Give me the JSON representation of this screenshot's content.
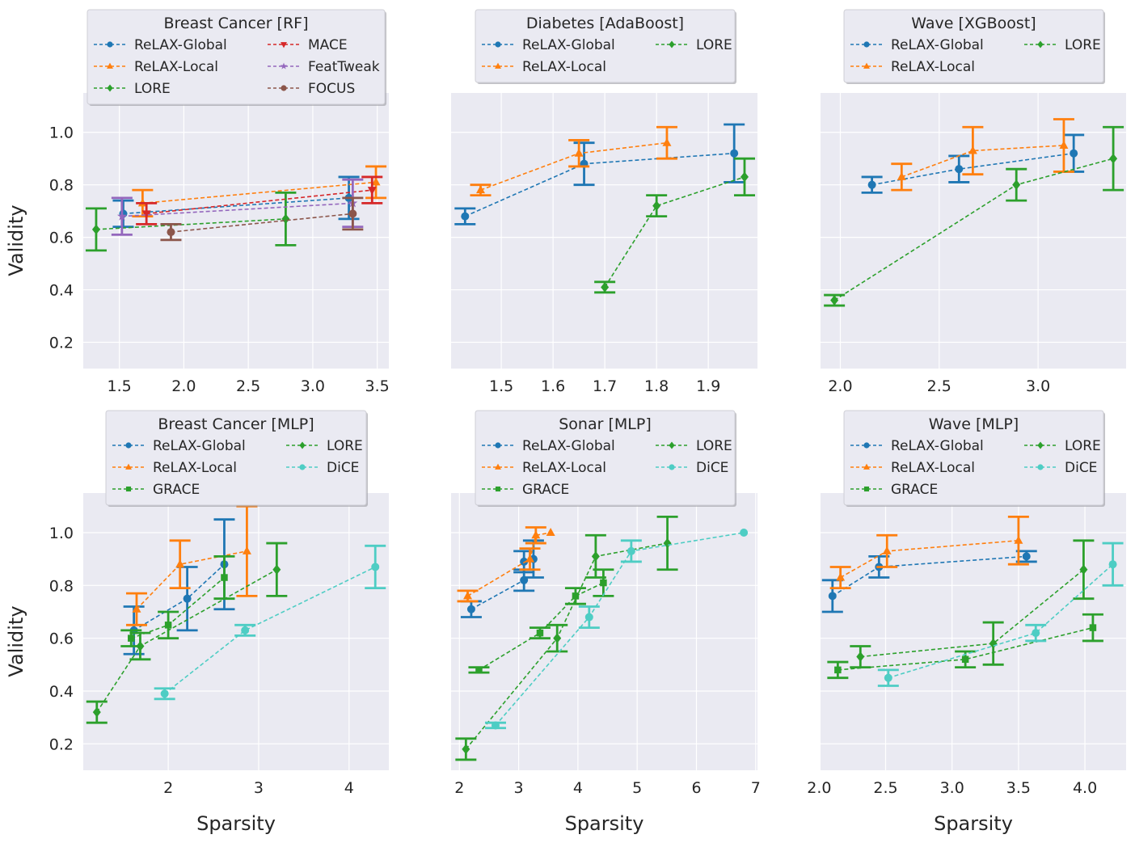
{
  "colors": {
    "background": "#eaeaf2",
    "grid": "#ffffff",
    "ReLAX-Global": "#1f77b4",
    "ReLAX-Local": "#ff7f0e",
    "LORE": "#2ca02c",
    "MACE": "#d62728",
    "FeatTweak": "#9467bd",
    "FOCUS": "#8c564b",
    "GRACE": "#2ca02c",
    "DiCE": "#4ecdc4"
  },
  "markers": {
    "ReLAX-Global": "circle",
    "ReLAX-Local": "triangle-up",
    "LORE": "diamond",
    "MACE": "triangle-down",
    "FeatTweak": "star",
    "FOCUS": "circle",
    "GRACE": "square",
    "DiCE": "circle"
  },
  "chart_data": [
    {
      "type": "line",
      "title": "Breast Cancer [RF]",
      "xlabel": "",
      "ylabel": "Validity",
      "xlim": [
        1.22,
        3.59
      ],
      "ylim": [
        0.1,
        1.15
      ],
      "xticks": [
        "1.5",
        "2.0",
        "2.5",
        "3.0",
        "3.5"
      ],
      "yticks": [
        "0.2",
        "0.4",
        "0.6",
        "0.8",
        "1.0"
      ],
      "grid": true,
      "legend": "top",
      "legend_order": [
        "ReLAX-Global",
        "MACE",
        "ReLAX-Local",
        "FeatTweak",
        "LORE",
        "FOCUS"
      ],
      "series": [
        {
          "name": "ReLAX-Global",
          "x": [
            1.53,
            3.28
          ],
          "y": [
            0.69,
            0.75
          ],
          "err": [
            0.05,
            0.08
          ]
        },
        {
          "name": "ReLAX-Local",
          "x": [
            1.68,
            3.49
          ],
          "y": [
            0.73,
            0.81
          ],
          "err": [
            0.05,
            0.06
          ]
        },
        {
          "name": "LORE",
          "x": [
            1.32,
            2.79
          ],
          "y": [
            0.63,
            0.67
          ],
          "err": [
            0.08,
            0.1
          ]
        },
        {
          "name": "MACE",
          "x": [
            1.71,
            3.46
          ],
          "y": [
            0.69,
            0.78
          ],
          "err": [
            0.04,
            0.05
          ]
        },
        {
          "name": "FeatTweak",
          "x": [
            1.52,
            3.31
          ],
          "y": [
            0.68,
            0.73
          ],
          "err": [
            0.07,
            0.09
          ]
        },
        {
          "name": "FOCUS",
          "x": [
            1.9,
            3.31
          ],
          "y": [
            0.62,
            0.69
          ],
          "err": [
            0.03,
            0.06
          ]
        }
      ]
    },
    {
      "type": "line",
      "title": "Diabetes [AdaBoost]",
      "xlabel": "",
      "ylabel": "",
      "xlim": [
        1.403,
        1.995
      ],
      "ylim": [
        0.1,
        1.15
      ],
      "xticks": [
        "1.5",
        "1.6",
        "1.7",
        "1.8",
        "1.9"
      ],
      "yticks": [],
      "grid": true,
      "legend": "top",
      "legend_order": [
        "ReLAX-Global",
        "LORE",
        "ReLAX-Local"
      ],
      "series": [
        {
          "name": "ReLAX-Global",
          "x": [
            1.43,
            1.66,
            1.95
          ],
          "y": [
            0.68,
            0.88,
            0.92
          ],
          "err": [
            0.03,
            0.08,
            0.11
          ]
        },
        {
          "name": "ReLAX-Local",
          "x": [
            1.46,
            1.65,
            1.82
          ],
          "y": [
            0.78,
            0.92,
            0.96
          ],
          "err": [
            0.02,
            0.05,
            0.06
          ]
        },
        {
          "name": "LORE",
          "x": [
            1.7,
            1.8,
            1.97
          ],
          "y": [
            0.41,
            0.72,
            0.83
          ],
          "err": [
            0.02,
            0.04,
            0.07
          ]
        }
      ]
    },
    {
      "type": "line",
      "title": "Wave [XGBoost]",
      "xlabel": "",
      "ylabel": "",
      "xlim": [
        1.9,
        3.445
      ],
      "ylim": [
        0.1,
        1.15
      ],
      "xticks": [
        "2.0",
        "2.5",
        "3.0"
      ],
      "yticks": [],
      "grid": true,
      "legend": "top",
      "legend_order": [
        "ReLAX-Global",
        "LORE",
        "ReLAX-Local"
      ],
      "series": [
        {
          "name": "ReLAX-Global",
          "x": [
            2.16,
            2.6,
            3.18
          ],
          "y": [
            0.8,
            0.86,
            0.92
          ],
          "err": [
            0.03,
            0.05,
            0.07
          ]
        },
        {
          "name": "ReLAX-Local",
          "x": [
            2.31,
            2.67,
            3.13
          ],
          "y": [
            0.83,
            0.93,
            0.95
          ],
          "err": [
            0.05,
            0.09,
            0.1
          ]
        },
        {
          "name": "LORE",
          "x": [
            1.97,
            2.89,
            3.38
          ],
          "y": [
            0.36,
            0.8,
            0.9
          ],
          "err": [
            0.02,
            0.06,
            0.12
          ]
        }
      ]
    },
    {
      "type": "line",
      "title": "Breast Cancer [MLP]",
      "xlabel": "Sparsity",
      "ylabel": "Validity",
      "xlim": [
        1.06,
        4.44
      ],
      "ylim": [
        0.1,
        1.15
      ],
      "xticks": [
        "2",
        "3",
        "4"
      ],
      "yticks": [
        "0.2",
        "0.4",
        "0.6",
        "0.8",
        "1.0"
      ],
      "grid": true,
      "legend": "top",
      "legend_order": [
        "ReLAX-Global",
        "LORE",
        "ReLAX-Local",
        "DiCE",
        "GRACE"
      ],
      "series": [
        {
          "name": "ReLAX-Global",
          "x": [
            1.62,
            2.21,
            2.62
          ],
          "y": [
            0.63,
            0.75,
            0.88
          ],
          "err": [
            0.09,
            0.12,
            0.17
          ]
        },
        {
          "name": "ReLAX-Local",
          "x": [
            1.65,
            2.13,
            2.87
          ],
          "y": [
            0.71,
            0.88,
            0.93
          ],
          "err": [
            0.06,
            0.09,
            0.17
          ]
        },
        {
          "name": "GRACE",
          "x": [
            1.59,
            2.0,
            2.62
          ],
          "y": [
            0.6,
            0.65,
            0.83
          ],
          "err": [
            0.03,
            0.05,
            0.08
          ]
        },
        {
          "name": "LORE",
          "x": [
            1.21,
            1.69,
            3.2
          ],
          "y": [
            0.32,
            0.57,
            0.86
          ],
          "err": [
            0.04,
            0.05,
            0.1
          ]
        },
        {
          "name": "DiCE",
          "x": [
            1.96,
            2.85,
            4.29
          ],
          "y": [
            0.39,
            0.63,
            0.87
          ],
          "err": [
            0.02,
            0.02,
            0.08
          ]
        }
      ]
    },
    {
      "type": "line",
      "title": "Sonar [MLP]",
      "xlabel": "Sparsity",
      "ylabel": "",
      "xlim": [
        1.86,
        7.03
      ],
      "ylim": [
        0.1,
        1.15
      ],
      "xticks": [
        "2",
        "3",
        "4",
        "5",
        "6",
        "7"
      ],
      "yticks": [],
      "grid": true,
      "legend": "top",
      "legend_order": [
        "ReLAX-Global",
        "LORE",
        "ReLAX-Local",
        "DiCE",
        "GRACE"
      ],
      "series": [
        {
          "name": "ReLAX-Global",
          "x": [
            2.2,
            3.09,
            3.09,
            3.25
          ],
          "y": [
            0.71,
            0.82,
            0.89,
            0.9
          ],
          "err": [
            0.03,
            0.04,
            0.04,
            0.07
          ]
        },
        {
          "name": "ReLAX-Local",
          "x": [
            2.14,
            3.19,
            3.29,
            3.54
          ],
          "y": [
            0.76,
            0.9,
            0.99,
            1.0
          ],
          "err": [
            0.02,
            0.04,
            0.03,
            0
          ]
        },
        {
          "name": "GRACE",
          "x": [
            2.33,
            3.36,
            3.96,
            4.43
          ],
          "y": [
            0.48,
            0.62,
            0.76,
            0.81
          ],
          "err": [
            0.01,
            0.02,
            0.03,
            0.05
          ]
        },
        {
          "name": "LORE",
          "x": [
            2.11,
            3.65,
            4.3,
            5.51
          ],
          "y": [
            0.18,
            0.6,
            0.91,
            0.96
          ],
          "err": [
            0.04,
            0.05,
            0.08,
            0.1
          ]
        },
        {
          "name": "DiCE",
          "x": [
            2.61,
            4.19,
            4.9,
            6.8
          ],
          "y": [
            0.27,
            0.68,
            0.93,
            1.0
          ],
          "err": [
            0.01,
            0.04,
            0.04,
            0
          ]
        }
      ]
    },
    {
      "type": "line",
      "title": "Wave [MLP]",
      "xlabel": "Sparsity",
      "ylabel": "",
      "xlim": [
        2.01,
        4.31
      ],
      "ylim": [
        0.1,
        1.15
      ],
      "xticks": [
        "2.0",
        "2.5",
        "3.0",
        "3.5",
        "4.0"
      ],
      "yticks": [],
      "grid": true,
      "legend": "top",
      "legend_order": [
        "ReLAX-Global",
        "LORE",
        "ReLAX-Local",
        "DiCE",
        "GRACE"
      ],
      "series": [
        {
          "name": "ReLAX-Global",
          "x": [
            2.1,
            2.45,
            3.56
          ],
          "y": [
            0.76,
            0.87,
            0.91
          ],
          "err": [
            0.06,
            0.04,
            0.02
          ]
        },
        {
          "name": "ReLAX-Local",
          "x": [
            2.16,
            2.51,
            3.5
          ],
          "y": [
            0.83,
            0.93,
            0.97
          ],
          "err": [
            0.04,
            0.06,
            0.09
          ]
        },
        {
          "name": "GRACE",
          "x": [
            2.14,
            3.1,
            4.06
          ],
          "y": [
            0.48,
            0.52,
            0.64
          ],
          "err": [
            0.03,
            0.03,
            0.05
          ]
        },
        {
          "name": "LORE",
          "x": [
            2.31,
            3.31,
            3.99
          ],
          "y": [
            0.53,
            0.58,
            0.86
          ],
          "err": [
            0.04,
            0.08,
            0.11
          ]
        },
        {
          "name": "DiCE",
          "x": [
            2.52,
            3.63,
            4.21
          ],
          "y": [
            0.45,
            0.62,
            0.88
          ],
          "err": [
            0.03,
            0.03,
            0.08
          ]
        }
      ]
    }
  ]
}
